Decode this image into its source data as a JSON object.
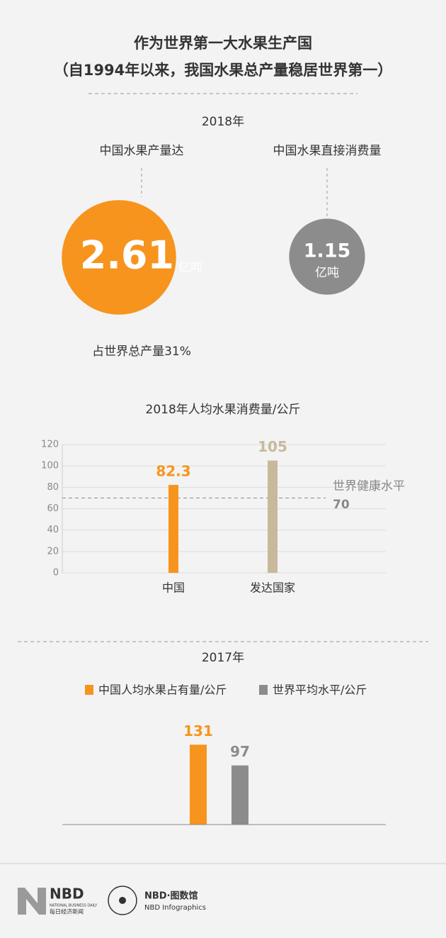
{
  "header": {
    "title": "作为世界第一大水果生产国",
    "subtitle": "（自1994年以来，我国水果总产量稳居世界第一）"
  },
  "sec2018": {
    "year": "2018年",
    "production": {
      "label": "中国水果产量达",
      "value": 2.61,
      "unit": "亿吨",
      "note": "占世界总产量31%",
      "color": "#f7941d"
    },
    "consumption": {
      "label": "中国水果直接消费量",
      "value": 1.15,
      "unit": "亿吨",
      "color": "#8c8c8c"
    }
  },
  "chart_data": [
    {
      "type": "bar",
      "title": "2018年人均水果消费量/公斤",
      "categories": [
        "中国",
        "发达国家"
      ],
      "values": [
        82.3,
        105
      ],
      "colors": [
        "#f7941d",
        "#c8b99a"
      ],
      "ylim": [
        0,
        120
      ],
      "yticks": [
        0,
        20,
        40,
        60,
        80,
        100,
        120
      ],
      "grid": true,
      "reference": {
        "label": "世界健康水平",
        "value": 70
      }
    },
    {
      "type": "grouped-bar",
      "title": "2017年",
      "categories": [
        null
      ],
      "ylim": [
        0,
        150
      ],
      "series": [
        {
          "name": "中国人均水果占有量/公斤",
          "color": "#f7941d",
          "values": [
            131
          ]
        },
        {
          "name": "世界平均水平/公斤",
          "color": "#8c8c8c",
          "values": [
            97
          ]
        }
      ]
    }
  ],
  "footer": {
    "brand": "NBD",
    "brand_en": "NATIONAL BUSINESS DAILY",
    "brand_cn": "每日经济新闻",
    "studio": "NBD·图数馆",
    "studio_en": "NBD Infographics"
  }
}
